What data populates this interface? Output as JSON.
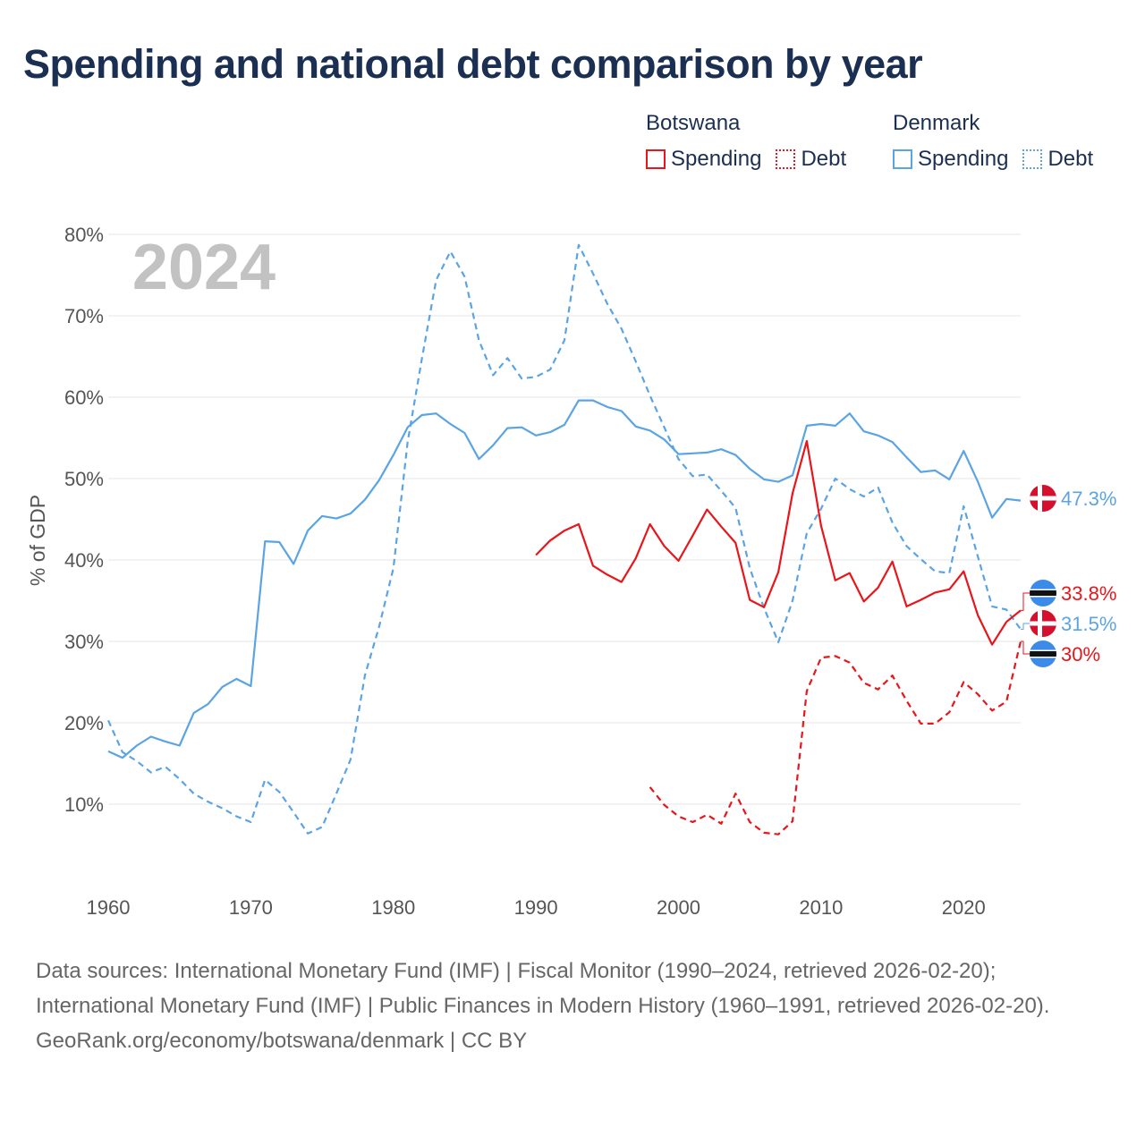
{
  "title": "Spending and national debt comparison by year",
  "legend": {
    "groups": [
      {
        "name": "Botswana",
        "color": "#e8161b",
        "items": [
          {
            "label": "Spending",
            "style": "solid"
          },
          {
            "label": "Debt",
            "style": "dotted"
          }
        ]
      },
      {
        "name": "Denmark",
        "color": "#5ba4e3",
        "items": [
          {
            "label": "Spending",
            "style": "solid"
          },
          {
            "label": "Debt",
            "style": "dotted"
          }
        ]
      }
    ]
  },
  "chart_data": {
    "type": "line",
    "year_label": "2024",
    "ylabel": "% of GDP",
    "xlim": [
      1960,
      2024
    ],
    "ylim": [
      0,
      80
    ],
    "x_ticks": [
      1960,
      1970,
      1980,
      1990,
      2000,
      2010,
      2020
    ],
    "y_ticks": [
      {
        "value": 10,
        "label": "10%"
      },
      {
        "value": 20,
        "label": "20%"
      },
      {
        "value": 30,
        "label": "30%"
      },
      {
        "value": 40,
        "label": "40%"
      },
      {
        "value": 50,
        "label": "50%"
      },
      {
        "value": 60,
        "label": "60%"
      },
      {
        "value": 70,
        "label": "70%"
      },
      {
        "value": 80,
        "label": "80%"
      }
    ],
    "series": [
      {
        "name": "Denmark Spending",
        "country": "Denmark",
        "color": "#5ba4e3",
        "dash": false,
        "end_label": "47.3%",
        "flag": "denmark",
        "x": [
          1960,
          1961,
          1962,
          1963,
          1964,
          1965,
          1966,
          1967,
          1968,
          1969,
          1970,
          1971,
          1972,
          1973,
          1974,
          1975,
          1976,
          1977,
          1978,
          1979,
          1980,
          1981,
          1982,
          1983,
          1984,
          1985,
          1986,
          1987,
          1988,
          1989,
          1990,
          1991,
          1992,
          1993,
          1994,
          1995,
          1996,
          1997,
          1998,
          1999,
          2000,
          2001,
          2002,
          2003,
          2004,
          2005,
          2006,
          2007,
          2008,
          2009,
          2010,
          2011,
          2012,
          2013,
          2014,
          2015,
          2016,
          2017,
          2018,
          2019,
          2020,
          2021,
          2022,
          2023,
          2024
        ],
        "y": [
          16.5,
          15.7,
          17.2,
          18.3,
          17.7,
          17.2,
          21.2,
          22.3,
          24.4,
          25.4,
          24.5,
          42.3,
          42.2,
          39.5,
          43.6,
          45.4,
          45.1,
          45.7,
          47.4,
          49.8,
          52.9,
          56.3,
          57.8,
          58.0,
          56.7,
          55.6,
          52.4,
          54.1,
          56.2,
          56.3,
          55.3,
          55.7,
          56.6,
          59.6,
          59.6,
          58.8,
          58.3,
          56.4,
          55.9,
          54.8,
          53.0,
          53.1,
          53.2,
          53.6,
          52.9,
          51.2,
          49.9,
          49.6,
          50.4,
          56.5,
          56.7,
          56.5,
          58.0,
          55.8,
          55.3,
          54.5,
          52.6,
          50.8,
          51.0,
          49.9,
          53.4,
          49.6,
          45.2,
          47.5,
          47.3
        ]
      },
      {
        "name": "Denmark Debt",
        "country": "Denmark",
        "color": "#5ba4e3",
        "dash": true,
        "end_label": "31.5%",
        "flag": "denmark",
        "x": [
          1960,
          1961,
          1962,
          1963,
          1964,
          1965,
          1966,
          1967,
          1968,
          1969,
          1970,
          1971,
          1972,
          1973,
          1974,
          1975,
          1976,
          1977,
          1978,
          1979,
          1980,
          1981,
          1982,
          1983,
          1984,
          1985,
          1986,
          1987,
          1988,
          1989,
          1990,
          1991,
          1992,
          1993,
          1994,
          1995,
          1996,
          1997,
          1998,
          1999,
          2000,
          2001,
          2002,
          2003,
          2004,
          2005,
          2006,
          2007,
          2008,
          2009,
          2010,
          2011,
          2012,
          2013,
          2014,
          2015,
          2016,
          2017,
          2018,
          2019,
          2020,
          2021,
          2022,
          2023,
          2024
        ],
        "y": [
          20.3,
          16.4,
          15.3,
          13.9,
          14.6,
          13.1,
          11.3,
          10.3,
          9.5,
          8.5,
          7.8,
          13.0,
          11.5,
          9.0,
          6.4,
          7.2,
          11.3,
          15.5,
          25.8,
          31.8,
          39.0,
          54.5,
          64.7,
          74.4,
          77.9,
          74.8,
          67.0,
          62.7,
          64.8,
          62.3,
          62.5,
          63.4,
          67.0,
          78.7,
          75.2,
          71.5,
          68.4,
          64.4,
          60.2,
          56.3,
          52.4,
          50.3,
          50.5,
          48.5,
          46.4,
          39.0,
          34.1,
          29.9,
          35.0,
          43.3,
          46.3,
          50.0,
          48.7,
          47.8,
          48.9,
          44.6,
          41.7,
          40.1,
          38.6,
          38.4,
          46.6,
          40.4,
          34.3,
          33.9,
          31.5
        ]
      },
      {
        "name": "Botswana Spending",
        "country": "Botswana",
        "color": "#e8161b",
        "dash": false,
        "end_label": "33.8%",
        "flag": "botswana",
        "x": [
          1990,
          1991,
          1992,
          1993,
          1994,
          1995,
          1996,
          1997,
          1998,
          1999,
          2000,
          2001,
          2002,
          2003,
          2004,
          2005,
          2006,
          2007,
          2008,
          2009,
          2010,
          2011,
          2012,
          2013,
          2014,
          2015,
          2016,
          2017,
          2018,
          2019,
          2020,
          2021,
          2022,
          2023,
          2024
        ],
        "y": [
          40.6,
          42.4,
          43.6,
          44.4,
          39.3,
          38.2,
          37.3,
          40.2,
          44.4,
          41.7,
          39.9,
          43.0,
          46.2,
          44.1,
          42.1,
          35.1,
          34.2,
          38.5,
          48.2,
          54.6,
          44.2,
          37.5,
          38.4,
          34.9,
          36.6,
          39.8,
          34.3,
          35.1,
          36.0,
          36.4,
          38.6,
          33.2,
          29.6,
          32.4,
          33.8
        ]
      },
      {
        "name": "Botswana Debt",
        "country": "Botswana",
        "color": "#e8161b",
        "dash": true,
        "end_label": "30%",
        "flag": "botswana",
        "x": [
          1998,
          1999,
          2000,
          2001,
          2002,
          2003,
          2004,
          2005,
          2006,
          2007,
          2008,
          2009,
          2010,
          2011,
          2012,
          2013,
          2014,
          2015,
          2016,
          2017,
          2018,
          2019,
          2020,
          2021,
          2022,
          2023,
          2024
        ],
        "y": [
          12.1,
          9.9,
          8.5,
          7.8,
          8.7,
          7.6,
          11.3,
          7.8,
          6.5,
          6.3,
          7.9,
          23.9,
          28.0,
          28.2,
          27.4,
          24.9,
          24.1,
          25.8,
          22.7,
          19.9,
          19.9,
          21.3,
          25.0,
          23.5,
          21.5,
          22.6,
          30.0
        ]
      }
    ]
  },
  "footer": {
    "sources": "Data sources: International Monetary Fund (IMF) | Fiscal Monitor (1990–2024, retrieved 2026-02-20); International Monetary Fund (IMF) | Public Finances in Modern History (1960–1991, retrieved 2026-02-20).",
    "credit": "GeoRank.org/economy/botswana/denmark | CC BY"
  }
}
